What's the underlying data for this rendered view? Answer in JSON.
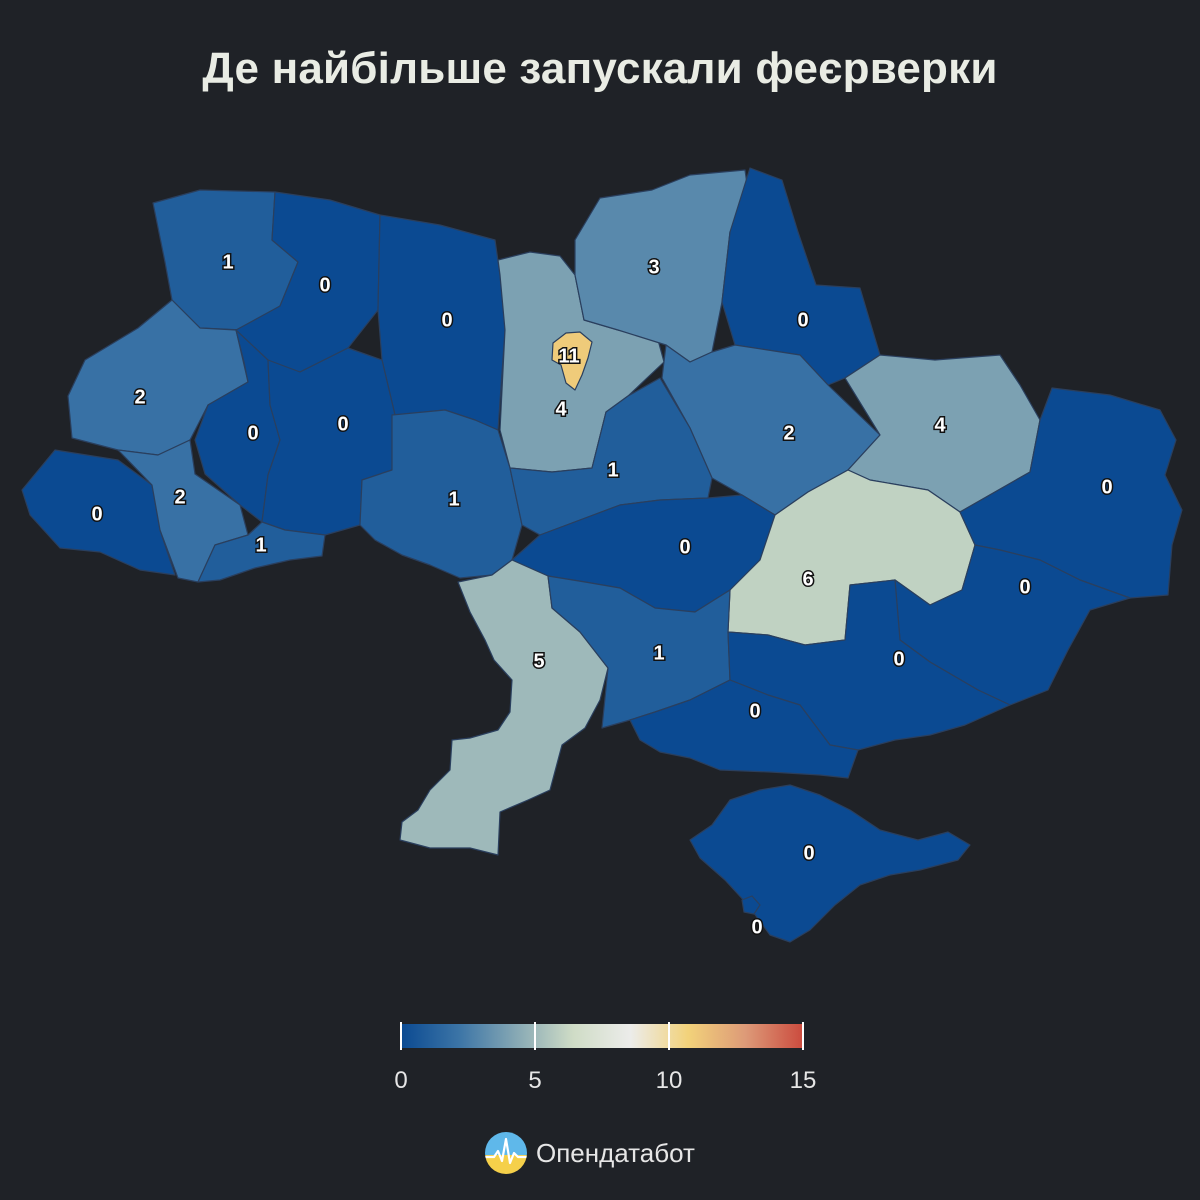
{
  "title": "Де найбільше запускали феєрверки",
  "colors": {
    "background": "#1f2227",
    "scale": [
      "#0b4a92",
      "#3b74a6",
      "#86a8b4",
      "#cfdcc6",
      "#ececea",
      "#f2d27a",
      "#dd9a78",
      "#cb4b3e"
    ]
  },
  "legend": {
    "min": 0,
    "max": 15,
    "ticks": [
      "0",
      "5",
      "10",
      "15"
    ]
  },
  "regions": [
    {
      "id": "volyn",
      "value": 1,
      "label": "1"
    },
    {
      "id": "rivne",
      "value": 0,
      "label": "0"
    },
    {
      "id": "zhytomyr",
      "value": 0,
      "label": "0"
    },
    {
      "id": "kyiv-city",
      "value": 11,
      "label": "11"
    },
    {
      "id": "kyiv-oblast",
      "value": 4,
      "label": "4"
    },
    {
      "id": "chernihiv",
      "value": 3,
      "label": "3"
    },
    {
      "id": "sumy",
      "value": 0,
      "label": "0"
    },
    {
      "id": "lviv",
      "value": 2,
      "label": "2"
    },
    {
      "id": "ternopil",
      "value": 0,
      "label": "0"
    },
    {
      "id": "khmelnytskyi",
      "value": 0,
      "label": "0"
    },
    {
      "id": "poltava",
      "value": 2,
      "label": "2"
    },
    {
      "id": "kharkiv",
      "value": 4,
      "label": "4"
    },
    {
      "id": "zakarpattia",
      "value": 0,
      "label": "0"
    },
    {
      "id": "ivano-frankivsk",
      "value": 2,
      "label": "2"
    },
    {
      "id": "chernivtsi",
      "value": 1,
      "label": "1"
    },
    {
      "id": "vinnytsia",
      "value": 1,
      "label": "1"
    },
    {
      "id": "cherkasy",
      "value": 1,
      "label": "1"
    },
    {
      "id": "luhansk",
      "value": 0,
      "label": "0"
    },
    {
      "id": "kirovohrad",
      "value": 0,
      "label": "0"
    },
    {
      "id": "dnipropetrovsk",
      "value": 6,
      "label": "6"
    },
    {
      "id": "donetsk",
      "value": 0,
      "label": "0"
    },
    {
      "id": "odesa",
      "value": 5,
      "label": "5"
    },
    {
      "id": "mykolaiv",
      "value": 1,
      "label": "1"
    },
    {
      "id": "zaporizhzhia",
      "value": 0,
      "label": "0"
    },
    {
      "id": "kherson",
      "value": 0,
      "label": "0"
    },
    {
      "id": "crimea",
      "value": 0,
      "label": "0"
    },
    {
      "id": "sevastopol",
      "value": 0,
      "label": "0"
    }
  ],
  "brand": {
    "name": "Опендатабот",
    "logo_icon": "pulse-logo-icon"
  }
}
